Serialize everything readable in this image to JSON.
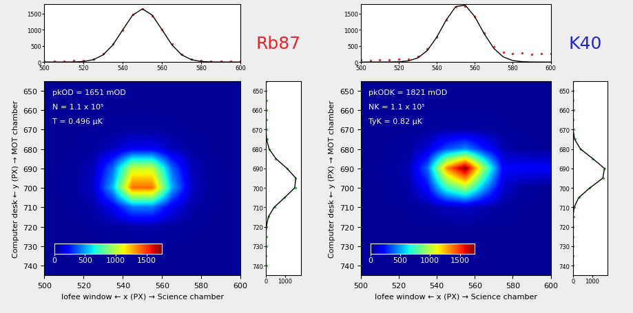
{
  "chart_data": [
    {
      "type": "heatmap",
      "title": "Rb87",
      "color": "#e8262a",
      "info": [
        "pkOD = 1651 mOD",
        "N = 1.1 x 10⁵",
        "T = 0.496 μK"
      ],
      "xlabel": "Iofee window ← x (PX) → Science chamber",
      "ylabel": "Computer desk ← y (PX) → MOT chamber",
      "xlim": [
        500,
        600
      ],
      "xticks": [
        500,
        520,
        540,
        560,
        580,
        600
      ],
      "ylim": [
        745,
        645
      ],
      "yticks": [
        650,
        660,
        670,
        680,
        690,
        700,
        710,
        720,
        730,
        740
      ],
      "x_bins": [
        500,
        510,
        520,
        530,
        540,
        550,
        560,
        570,
        580,
        590,
        600
      ],
      "y_bins": [
        645,
        655,
        665,
        675,
        685,
        695,
        705,
        715,
        725,
        735,
        745
      ],
      "cells": [
        [
          40,
          40,
          40,
          40,
          40,
          40,
          40,
          40,
          40,
          40
        ],
        [
          40,
          40,
          40,
          40,
          40,
          40,
          40,
          40,
          40,
          40
        ],
        [
          40,
          40,
          40,
          42,
          44,
          44,
          42,
          40,
          40,
          40
        ],
        [
          40,
          40,
          47,
          93,
          185,
          185,
          93,
          47,
          40,
          40
        ],
        [
          40,
          42,
          89,
          399,
          1027,
          1027,
          399,
          89,
          42,
          40
        ],
        [
          40,
          43,
          108,
          531,
          1391,
          1391,
          531,
          108,
          43,
          40
        ],
        [
          40,
          41,
          60,
          183,
          432,
          432,
          183,
          60,
          41,
          40
        ],
        [
          40,
          40,
          41,
          48,
          63,
          63,
          48,
          41,
          40,
          40
        ],
        [
          40,
          40,
          40,
          40,
          40,
          40,
          40,
          40,
          40,
          40
        ],
        [
          40,
          40,
          40,
          40,
          40,
          40,
          40,
          40,
          40,
          40
        ]
      ],
      "colorbar": {
        "range": [
          0,
          1750
        ],
        "ticks": [
          0,
          500,
          1000,
          1500
        ]
      },
      "top_profile": {
        "x": [
          500,
          505,
          510,
          515,
          520,
          525,
          530,
          535,
          540,
          545,
          550,
          555,
          560,
          565,
          570,
          575,
          580,
          585,
          590,
          595,
          600
        ],
        "xlim": [
          500,
          600
        ],
        "xticks": [
          500,
          520,
          540,
          560,
          580,
          600
        ],
        "ylim": [
          0,
          1800
        ],
        "yticks": [
          0,
          500,
          1000,
          1500
        ],
        "series": [
          {
            "type": "scatter",
            "color": "#e03030",
            "marker": "dot",
            "values": [
              20,
              35,
              25,
              40,
              50,
              95,
              250,
              560,
              980,
              1480,
              1640,
              1430,
              1010,
              560,
              240,
              90,
              40,
              30,
              20,
              35,
              25
            ]
          },
          {
            "type": "line",
            "color": "#000000",
            "values": [
              0,
              0,
              0,
              3,
              18,
              73,
              223,
              536,
              1002,
              1455,
              1650,
              1455,
              1002,
              536,
              223,
              73,
              18,
              3,
              0,
              0,
              0
            ]
          }
        ]
      },
      "side_profile": {
        "y": [
          645,
          650,
          655,
          660,
          665,
          670,
          675,
          680,
          685,
          690,
          695,
          700,
          705,
          710,
          715,
          720,
          725,
          730,
          735,
          740
        ],
        "xlim": [
          0,
          1800
        ],
        "xticks": [
          0,
          1000
        ],
        "ylim": [
          745,
          645
        ],
        "yticks": [
          650,
          660,
          670,
          680,
          690,
          700,
          710,
          720,
          730,
          740
        ],
        "series": [
          {
            "type": "scatter",
            "color": "#40c040",
            "marker": "dot",
            "values": [
              30,
              10,
              40,
              20,
              35,
              30,
              60,
              190,
              500,
              1120,
              1530,
              1520,
              950,
              450,
              140,
              50,
              20,
              30,
              10,
              25
            ]
          },
          {
            "type": "line",
            "color": "#000000",
            "values": [
              0,
              0,
              0,
              0,
              0,
              5,
              37,
              168,
              520,
              1091,
              1550,
              1491,
              971,
              427,
              126,
              26,
              3,
              0,
              0,
              0
            ]
          }
        ]
      }
    },
    {
      "type": "heatmap",
      "title": "K40",
      "color": "#2323d8",
      "info": [
        "pkODK = 1821 mOD",
        "NK = 1.1 x 10⁵",
        "TyK = 0.82 μK"
      ],
      "xlabel": "Iofee window ← x (PX) → Science chamber",
      "ylabel": "Computer desk ← y (PX) → MOT chamber",
      "xlim": [
        500,
        600
      ],
      "xticks": [
        500,
        520,
        540,
        560,
        580,
        600
      ],
      "ylim": [
        745,
        645
      ],
      "yticks": [
        650,
        660,
        670,
        680,
        690,
        700,
        710,
        720,
        730,
        740
      ],
      "x_bins": [
        500,
        510,
        520,
        530,
        540,
        550,
        560,
        570,
        580,
        590,
        600
      ],
      "y_bins": [
        645,
        655,
        665,
        675,
        685,
        695,
        705,
        715,
        725,
        735,
        745
      ],
      "cells": [
        [
          40,
          40,
          40,
          40,
          40,
          40,
          40,
          40,
          40,
          40
        ],
        [
          40,
          40,
          40,
          40,
          40,
          40,
          40,
          40,
          40,
          40
        ],
        [
          40,
          40,
          40,
          43,
          49,
          53,
          46,
          41,
          40,
          40
        ],
        [
          40,
          40,
          48,
          124,
          346,
          451,
          245,
          77,
          43,
          40
        ],
        [
          40,
          42,
          75,
          390,
          1316,
          1753,
          897,
          196,
          200,
          190
        ],
        [
          40,
          41,
          59,
          229,
          731,
          968,
          504,
          124,
          46,
          40
        ],
        [
          40,
          40,
          41,
          53,
          89,
          106,
          73,
          46,
          40,
          40
        ],
        [
          40,
          40,
          40,
          40,
          40,
          40,
          40,
          40,
          40,
          40
        ],
        [
          40,
          40,
          40,
          40,
          40,
          40,
          40,
          40,
          40,
          40
        ],
        [
          40,
          40,
          40,
          40,
          40,
          40,
          40,
          40,
          40,
          40
        ]
      ],
      "colorbar": {
        "range": [
          0,
          1750
        ],
        "ticks": [
          0,
          500,
          1000,
          1500
        ]
      },
      "top_profile": {
        "x": [
          500,
          505,
          510,
          515,
          520,
          525,
          530,
          535,
          540,
          545,
          550,
          555,
          560,
          565,
          570,
          575,
          580,
          585,
          590,
          595,
          600
        ],
        "xlim": [
          500,
          600
        ],
        "xticks": [
          500,
          520,
          540,
          560,
          580,
          600
        ],
        "ylim": [
          0,
          1800
        ],
        "yticks": [
          0,
          500,
          1000,
          1500
        ],
        "series": [
          {
            "type": "scatter",
            "color": "#e03030",
            "marker": "dot",
            "values": [
              60,
              50,
              70,
              60,
              80,
              100,
              180,
              400,
              780,
              1300,
              1720,
              1740,
              1420,
              900,
              480,
              300,
              260,
              280,
              240,
              260,
              250
            ]
          },
          {
            "type": "line",
            "color": "#000000",
            "values": [
              0,
              0,
              0,
              1,
              7,
              36,
              128,
              356,
              774,
              1307,
              1721,
              1764,
              1409,
              877,
              425,
              160,
              47,
              11,
              2,
              0,
              0
            ]
          }
        ]
      },
      "side_profile": {
        "y": [
          645,
          650,
          655,
          660,
          665,
          670,
          675,
          680,
          685,
          690,
          695,
          700,
          705,
          710,
          715,
          720,
          725,
          730,
          735,
          740
        ],
        "xlim": [
          0,
          1800
        ],
        "xticks": [
          0,
          1000
        ],
        "ylim": [
          745,
          645
        ],
        "yticks": [
          650,
          660,
          670,
          680,
          690,
          700,
          710,
          720,
          730,
          740
        ],
        "series": [
          {
            "type": "scatter",
            "color": "#40c040",
            "marker": "dot",
            "values": [
              10,
              20,
              0,
              30,
              20,
              30,
              110,
              400,
              1000,
              1650,
              1560,
              870,
              320,
              80,
              30,
              10,
              20,
              0,
              10,
              20
            ]
          },
          {
            "type": "line",
            "color": "#000000",
            "values": [
              0,
              0,
              0,
              0,
              1,
              12,
              88,
              391,
              1032,
              1632,
              1550,
              884,
              303,
              63,
              8,
              0,
              0,
              0,
              0,
              0
            ]
          }
        ]
      }
    }
  ]
}
